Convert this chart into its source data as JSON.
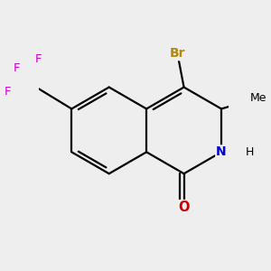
{
  "background_color": "#eeeeee",
  "bond_color": "#000000",
  "bond_width": 1.6,
  "atom_colors": {
    "Br": "#b8860b",
    "F": "#cc00cc",
    "N": "#0000cc",
    "O": "#cc0000",
    "C": "#000000"
  },
  "figsize": [
    3.0,
    3.0
  ],
  "dpi": 100,
  "scale": 0.9
}
